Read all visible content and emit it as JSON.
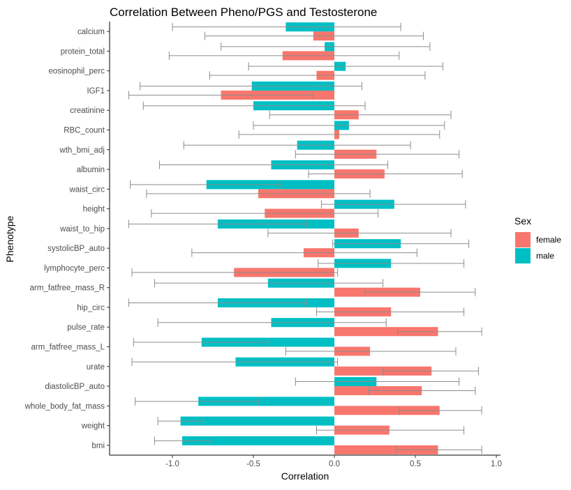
{
  "chart_data": {
    "type": "bar",
    "orientation": "horizontal",
    "title": "Correlation Between Pheno/PGS and Testosterone",
    "xlabel": "Correlation",
    "ylabel": "Phenotype",
    "xlim": [
      -1.38,
      1.02
    ],
    "xticks": [
      -1.0,
      -0.5,
      0.0,
      0.5,
      1.0
    ],
    "xtick_labels": [
      "-1.0",
      "-0.5",
      "0.0",
      "0.5",
      "1.0"
    ],
    "grid": false,
    "legend": {
      "title": "Sex",
      "position": "right",
      "entries": [
        {
          "name": "female",
          "color": "#F8766D"
        },
        {
          "name": "male",
          "color": "#00BFC4"
        }
      ]
    },
    "categories": [
      "calcium",
      "protein_total",
      "eosinophil_perc",
      "IGF1",
      "creatinine",
      "RBC_count",
      "wth_bmi_adj",
      "albumin",
      "waist_circ",
      "height",
      "waist_to_hip",
      "systolicBP_auto",
      "lymphocyte_perc",
      "arm_fatfree_mass_R",
      "hip_circ",
      "pulse_rate",
      "arm_fatfree_mass_L",
      "urate",
      "diastolicBP_auto",
      "whole_body_fat_mass",
      "weight",
      "bmi"
    ],
    "series": [
      {
        "name": "female",
        "color": "#F8766D",
        "values": [
          -0.13,
          -0.32,
          -0.11,
          -0.7,
          0.15,
          0.03,
          0.26,
          0.31,
          -0.47,
          -0.43,
          0.15,
          -0.19,
          -0.62,
          0.53,
          0.35,
          0.64,
          0.22,
          0.6,
          0.54,
          0.65,
          0.34,
          0.64
        ],
        "ci_low": [
          -0.8,
          -1.02,
          -0.77,
          -1.27,
          -0.4,
          -0.59,
          -0.24,
          -0.16,
          -1.16,
          -1.13,
          -0.41,
          -0.88,
          -1.25,
          0.19,
          -0.11,
          0.39,
          -0.3,
          0.3,
          0.21,
          0.4,
          -0.11,
          0.38
        ],
        "ci_high": [
          0.55,
          0.4,
          0.56,
          -0.13,
          0.72,
          0.65,
          0.77,
          0.79,
          0.22,
          0.27,
          0.72,
          0.51,
          0.02,
          0.87,
          0.8,
          0.91,
          0.75,
          0.89,
          0.87,
          0.91,
          0.8,
          0.91
        ]
      },
      {
        "name": "male",
        "color": "#00BFC4",
        "values": [
          -0.3,
          -0.06,
          0.07,
          -0.51,
          -0.5,
          0.09,
          -0.23,
          -0.39,
          -0.79,
          0.37,
          -0.72,
          0.41,
          0.35,
          -0.41,
          -0.72,
          -0.39,
          -0.82,
          -0.61,
          0.26,
          -0.84,
          -0.95,
          -0.94
        ],
        "ci_low": [
          -1.0,
          -0.7,
          -0.53,
          -1.2,
          -1.18,
          -0.5,
          -0.93,
          -1.08,
          -1.26,
          -0.08,
          -1.27,
          -0.01,
          -0.1,
          -1.11,
          -1.27,
          -1.09,
          -1.24,
          -1.25,
          -0.24,
          -1.23,
          -1.09,
          -1.11
        ],
        "ci_high": [
          0.41,
          0.59,
          0.67,
          0.17,
          0.19,
          0.68,
          0.47,
          0.33,
          -0.33,
          0.81,
          -0.17,
          0.83,
          0.8,
          0.3,
          -0.17,
          0.32,
          -0.41,
          0.02,
          0.77,
          -0.47,
          -0.81,
          -0.76
        ]
      }
    ]
  }
}
